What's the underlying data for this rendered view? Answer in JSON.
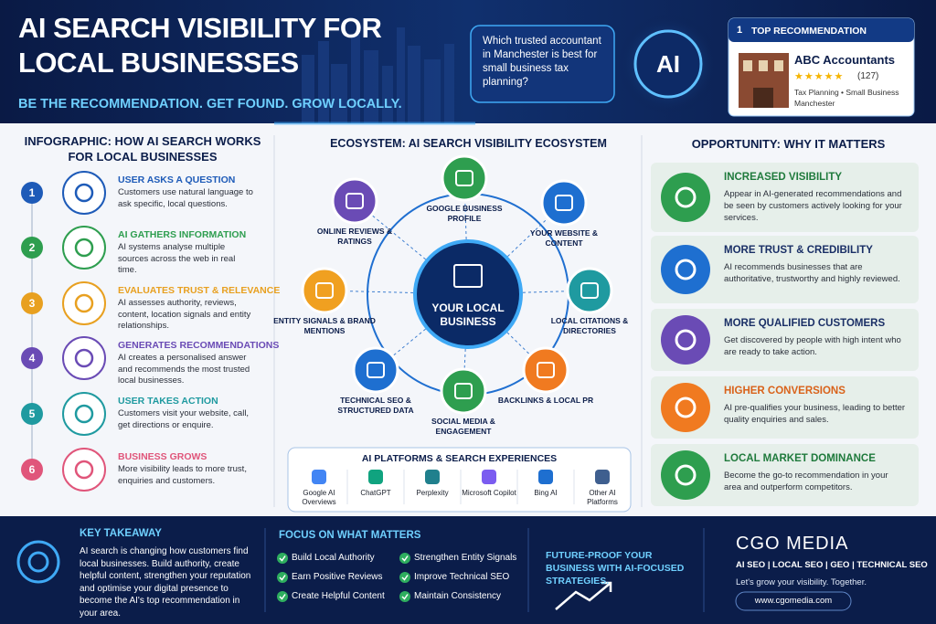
{
  "header": {
    "title": "AI SEARCH VISIBILITY FOR LOCAL BUSINESSES",
    "tagline": "BE THE RECOMMENDATION. GET FOUND. GROW LOCALLY.",
    "query": "Which trusted accountant in Manchester is best for small business tax planning?",
    "ai_badge": "AI",
    "recommendation": {
      "rank": "1",
      "label": "TOP RECOMMENDATION",
      "business": "ABC Accountants",
      "stars": "★★★★★",
      "reviews": "(127)",
      "tags": "Tax Planning • Small Business",
      "location": "Manchester"
    }
  },
  "how_it_works": {
    "title": "INFOGRAPHIC: HOW AI SEARCH WORKS FOR LOCAL BUSINESSES",
    "steps": [
      {
        "number": "1",
        "heading": "USER ASKS A QUESTION",
        "text": "Customers use natural language to ask specific, local questions."
      },
      {
        "number": "2",
        "heading": "AI GATHERS INFORMATION",
        "text": "AI systems analyse multiple sources across the web in real time."
      },
      {
        "number": "3",
        "heading": "EVALUATES TRUST & RELEVANCE",
        "text": "AI assesses authority, reviews, content, location signals and entity relationships."
      },
      {
        "number": "4",
        "heading": "GENERATES RECOMMENDATIONS",
        "text": "AI creates a personalised answer and recommends the most trusted local businesses."
      },
      {
        "number": "5",
        "heading": "USER TAKES ACTION",
        "text": "Customers visit your website, call, get directions or enquire."
      },
      {
        "number": "6",
        "heading": "BUSINESS GROWS",
        "text": "More visibility leads to more trust, enquiries and customers."
      }
    ]
  },
  "ecosystem": {
    "title": "ECOSYSTEM: AI SEARCH VISIBILITY ECOSYSTEM",
    "center": "YOUR LOCAL BUSINESS",
    "nodes": [
      "ONLINE REVIEWS & RATINGS",
      "GOOGLE BUSINESS PROFILE",
      "YOUR WEBSITE & CONTENT",
      "ENTITY SIGNALS & BRAND MENTIONS",
      "LOCAL CITATIONS & DIRECTORIES",
      "TECHNICAL SEO & STRUCTURED DATA",
      "SOCIAL MEDIA & ENGAGEMENT",
      "BACKLINKS & LOCAL PR"
    ],
    "platforms": {
      "title": "AI PLATFORMS & SEARCH EXPERIENCES",
      "items": [
        "Google AI Overviews",
        "ChatGPT",
        "Perplexity",
        "Microsoft Copilot",
        "Bing AI",
        "Other AI Platforms"
      ]
    }
  },
  "opportunity": {
    "title": "OPPORTUNITY: WHY IT MATTERS",
    "items": [
      {
        "heading": "INCREASED VISIBILITY",
        "text": "Appear in AI-generated recommendations and be seen by customers actively looking for your services."
      },
      {
        "heading": "MORE TRUST & CREDIBILITY",
        "text": "AI recommends businesses that are authoritative, trustworthy and highly reviewed."
      },
      {
        "heading": "MORE QUALIFIED CUSTOMERS",
        "text": "Get discovered by people with high intent who are ready to take action."
      },
      {
        "heading": "HIGHER CONVERSIONS",
        "text": "AI pre-qualifies your business, leading to better quality enquiries and sales."
      },
      {
        "heading": "LOCAL MARKET DOMINANCE",
        "text": "Become the go-to recommendation in your area and outperform competitors."
      }
    ]
  },
  "footer": {
    "takeaway": {
      "title": "KEY TAKEAWAY",
      "text": "AI search is changing how customers find local businesses. Build authority, create helpful content, strengthen your reputation and optimise your digital presence to become the AI's top recommendation in your area."
    },
    "focus": {
      "title": "FOCUS ON WHAT MATTERS",
      "items": [
        "Build Local Authority",
        "Earn Positive Reviews",
        "Create Helpful Content",
        "Strengthen Entity Signals",
        "Improve Technical SEO",
        "Maintain Consistency"
      ]
    },
    "future": "FUTURE-PROOF YOUR BUSINESS WITH AI-FOCUSED STRATEGIES.",
    "brand": {
      "name": "CGO MEDIA",
      "services": "AI SEO | LOCAL SEO | GEO | TECHNICAL SEO",
      "slogan": "Let's grow your visibility. Together.",
      "url": "www.cgomedia.com"
    }
  }
}
